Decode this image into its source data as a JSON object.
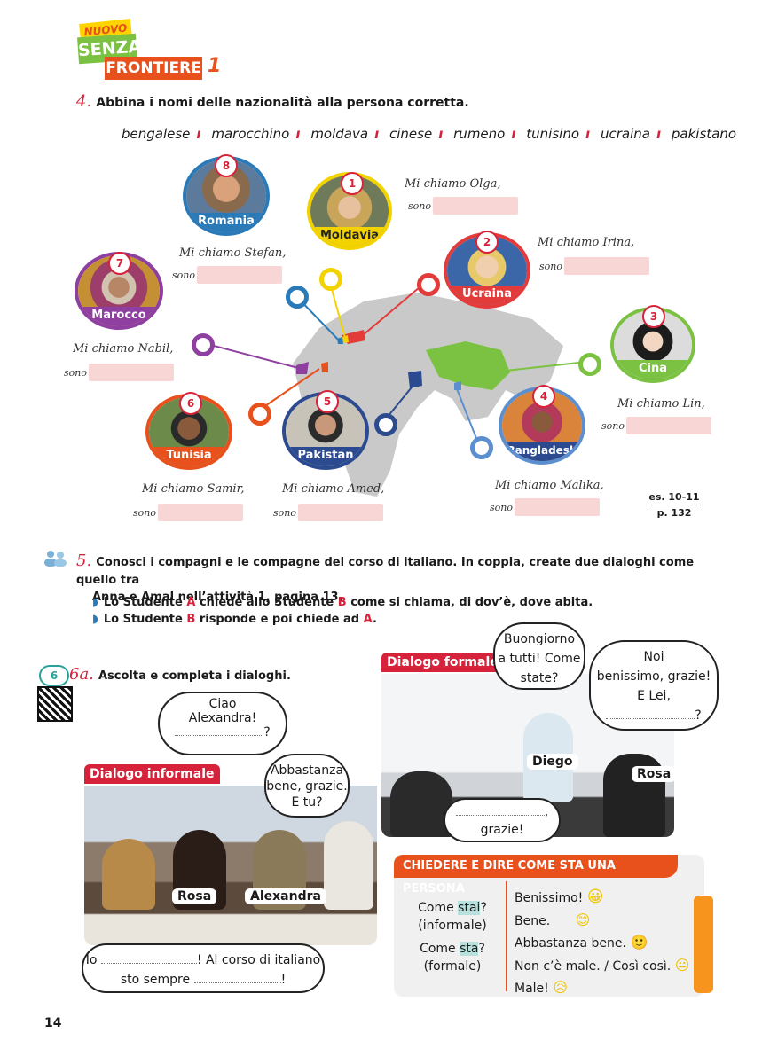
{
  "logo": {
    "nuovo": "NUOVO",
    "senza": "SENZA",
    "frontiere": "FRONTIERE",
    "volume": "1"
  },
  "ex4": {
    "num": "4.",
    "title": "Abbina i nomi delle nazionalità alla persona corretta.",
    "words": [
      "bengalese",
      "marocchino",
      "moldava",
      "cinese",
      "rumeno",
      "tunisino",
      "ucraina",
      "pakistano"
    ],
    "people": [
      {
        "number": "8",
        "country": "Romania",
        "line": "Mi chiamo Stefan,",
        "sono": "sono",
        "color": "#2a7ab8"
      },
      {
        "number": "1",
        "country": "Moldavia",
        "line": "Mi chiamo Olga,",
        "sono": "sono",
        "color": "#f2d300"
      },
      {
        "number": "2",
        "country": "Ucraina",
        "line": "Mi chiamo Irina,",
        "sono": "sono",
        "color": "#e33a3a"
      },
      {
        "number": "7",
        "country": "Marocco",
        "line": "Mi chiamo Nabil,",
        "sono": "sono",
        "color": "#8e3fa0"
      },
      {
        "number": "3",
        "country": "Cina",
        "line": "Mi chiamo Lin,",
        "sono": "sono",
        "color": "#7cc242"
      },
      {
        "number": "6",
        "country": "Tunisia",
        "line": "Mi chiamo Samir,",
        "sono": "sono",
        "color": "#e8501c"
      },
      {
        "number": "5",
        "country": "Pakistan",
        "line": "Mi chiamo Amed,",
        "sono": "sono",
        "color": "#2b4a8f"
      },
      {
        "number": "4",
        "country": "Bangladesh",
        "line": "Mi chiamo Malika,",
        "sono": "sono",
        "color": "#5b8fd0"
      }
    ],
    "ref": {
      "line1": "es. 10-11",
      "line2": "p. 132"
    }
  },
  "ex5": {
    "num": "5.",
    "title_line1": "Conosci i compagni e le compagne del corso di italiano. In coppia, create due dialoghi come quello tra",
    "title_line2": "Anna e Amal nell’attività 1, pagina 13.",
    "b1": {
      "p1": "Lo Studente ",
      "a": "A",
      "p2": " chiede allo Studente ",
      "b": "B",
      "p3": " come si chiama, di dov’è, dove abita."
    },
    "b2": {
      "p1": "Lo Studente ",
      "b": "B",
      "p2": " risponde e poi chiede ad ",
      "a": "A",
      "p3": "."
    }
  },
  "ex6": {
    "audio": "6",
    "num": "6a.",
    "title": "Ascolta e completa i dialoghi.",
    "informale": {
      "tag": "Dialogo informale",
      "b1_l1": "Ciao",
      "b1_l2": "Alexandra!",
      "b1_q": "?",
      "b2": [
        "Abbastanza",
        "bene, grazie.",
        "E tu?"
      ],
      "b3_l1a": "Io",
      "b3_l1b": "! Al corso di italiano",
      "b3_l2a": "sto sempre",
      "b3_l2b": "!",
      "names": [
        "Rosa",
        "Alexandra"
      ]
    },
    "formale": {
      "tag": "Dialogo formale",
      "b1": [
        "Buongiorno",
        "a tutti! Come",
        "state?"
      ],
      "b2": [
        "Noi",
        "benissimo, grazie!",
        "E Lei,"
      ],
      "b2_q": "?",
      "b3_comma": ",",
      "b3_l2": "grazie!",
      "names": [
        "Diego",
        "Rosa"
      ]
    }
  },
  "box": {
    "header": "CHIEDERE E DIRE COME STA UNA PERSONA",
    "q1a": "Come ",
    "q1b": "stai",
    "q1c": "?",
    "q1d": "(informale)",
    "q2a": "Come ",
    "q2b": "sta",
    "q2c": "?",
    "q2d": "(formale)",
    "answers": [
      "Benissimo!",
      "Bene.",
      "Abbastanza bene.",
      "Non c’è male. / Così così.",
      "Male!"
    ]
  },
  "page_number": "14"
}
